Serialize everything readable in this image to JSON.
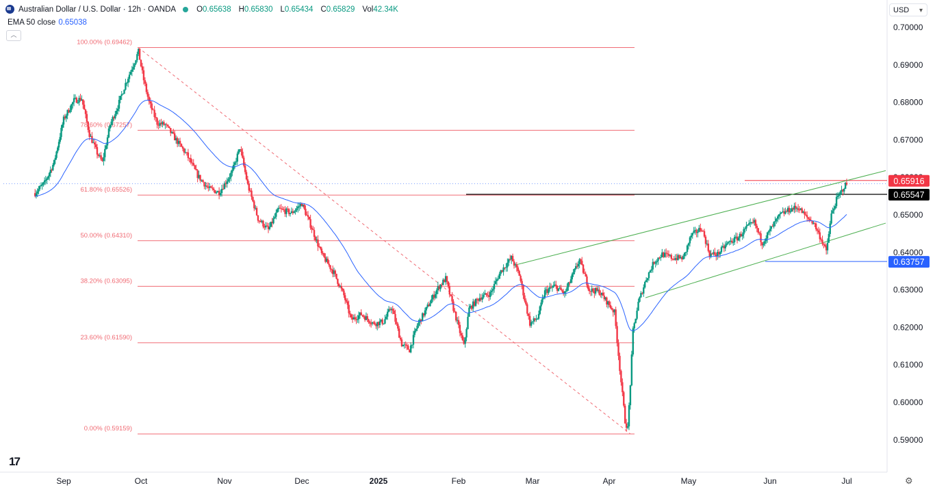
{
  "header": {
    "symbol_title": "Australian Dollar / U.S. Dollar · 12h · OANDA",
    "o_label": "O",
    "o_value": "0.65638",
    "h_label": "H",
    "h_value": "0.65830",
    "l_label": "L",
    "l_value": "0.65434",
    "c_label": "C",
    "c_value": "0.65829",
    "vol_label": "Vol",
    "vol_value": "42.34K",
    "ema_label": "EMA 50 close",
    "ema_value": "0.65038"
  },
  "currency_select": "USD",
  "colors": {
    "up": "#089981",
    "down": "#f23645",
    "ema": "#2962ff",
    "fib": "#f06a73",
    "channel": "#4caf50",
    "support": "#2962ff",
    "resistance_label_bg": "#f23645"
  },
  "chart_data": {
    "type": "candlestick",
    "ylim": [
      0.5885,
      0.701
    ],
    "y_ticks": [
      "0.70000",
      "0.69000",
      "0.68000",
      "0.67000",
      "0.66000",
      "0.65000",
      "0.64000",
      "0.63000",
      "0.62000",
      "0.61000",
      "0.60000",
      "0.59000"
    ],
    "x_ticks": [
      "Sep",
      "Oct",
      "Nov",
      "Dec",
      "2025",
      "Feb",
      "Mar",
      "Apr",
      "May",
      "Jun",
      "Jul"
    ],
    "fib_levels": [
      {
        "label": "100.00% (0.69462)",
        "value": 0.69462
      },
      {
        "label": "78.60% (0.67257)",
        "value": 0.67257
      },
      {
        "label": "61.80% (0.65526)",
        "value": 0.65526
      },
      {
        "label": "50.00% (0.64310)",
        "value": 0.6431
      },
      {
        "label": "38.20% (0.63095)",
        "value": 0.63095
      },
      {
        "label": "23.60% (0.61590)",
        "value": 0.6159
      },
      {
        "label": "0.00% (0.59159)",
        "value": 0.59159
      }
    ],
    "price_labels": [
      {
        "label": "0.65916",
        "value": 0.65916,
        "kind": "resistance"
      },
      {
        "label": "0.65547",
        "value": 0.65547,
        "kind": "current"
      },
      {
        "label": "0.63757",
        "value": 0.63757,
        "kind": "support"
      }
    ],
    "ema_value": 0.65038,
    "price_path": [
      [
        "Aug 20",
        0.6558
      ],
      [
        "Aug 24",
        0.6585
      ],
      [
        "Aug 28",
        0.664
      ],
      [
        "Sep 1",
        0.6755
      ],
      [
        "Sep 5",
        0.6805
      ],
      [
        "Sep 8",
        0.681
      ],
      [
        "Sep 11",
        0.6715
      ],
      [
        "Sep 14",
        0.6665
      ],
      [
        "Sep 16",
        0.664
      ],
      [
        "Sep 19",
        0.674
      ],
      [
        "Sep 22",
        0.679
      ],
      [
        "Sep 25",
        0.685
      ],
      [
        "Sep 28",
        0.69
      ],
      [
        "Sep 30",
        0.6935
      ],
      [
        "Oct 2",
        0.686
      ],
      [
        "Oct 4",
        0.68
      ],
      [
        "Oct 7",
        0.6745
      ],
      [
        "Oct 10",
        0.674
      ],
      [
        "Oct 14",
        0.67
      ],
      [
        "Oct 18",
        0.666
      ],
      [
        "Oct 22",
        0.6605
      ],
      [
        "Oct 26",
        0.657
      ],
      [
        "Oct 30",
        0.656
      ],
      [
        "Nov 4",
        0.6615
      ],
      [
        "Nov 7",
        0.668
      ],
      [
        "Nov 10",
        0.658
      ],
      [
        "Nov 14",
        0.649
      ],
      [
        "Nov 18",
        0.646
      ],
      [
        "Nov 22",
        0.6515
      ],
      [
        "Nov 27",
        0.6505
      ],
      [
        "Dec 1",
        0.653
      ],
      [
        "Dec 5",
        0.6465
      ],
      [
        "Dec 9",
        0.6395
      ],
      [
        "Dec 14",
        0.6345
      ],
      [
        "Dec 18",
        0.6285
      ],
      [
        "Dec 21",
        0.622
      ],
      [
        "Dec 25",
        0.6235
      ],
      [
        "Dec 30",
        0.621
      ],
      [
        "Jan 3",
        0.6215
      ],
      [
        "Jan 6",
        0.6255
      ],
      [
        "Jan 10",
        0.6155
      ],
      [
        "Jan 13",
        0.614
      ],
      [
        "Jan 16",
        0.6205
      ],
      [
        "Jan 20",
        0.6255
      ],
      [
        "Jan 24",
        0.6305
      ],
      [
        "Jan 27",
        0.633
      ],
      [
        "Jan 30",
        0.625
      ],
      [
        "Feb 3",
        0.615
      ],
      [
        "Feb 5",
        0.625
      ],
      [
        "Feb 9",
        0.628
      ],
      [
        "Feb 13",
        0.629
      ],
      [
        "Feb 17",
        0.635
      ],
      [
        "Feb 21",
        0.6385
      ],
      [
        "Feb 24",
        0.634
      ],
      [
        "Feb 28",
        0.621
      ],
      [
        "Mar 3",
        0.6225
      ],
      [
        "Mar 6",
        0.6295
      ],
      [
        "Mar 10",
        0.631
      ],
      [
        "Mar 14",
        0.629
      ],
      [
        "Mar 18",
        0.635
      ],
      [
        "Mar 20",
        0.638
      ],
      [
        "Mar 24",
        0.63
      ],
      [
        "Mar 28",
        0.6295
      ],
      [
        "Apr 1",
        0.626
      ],
      [
        "Apr 3",
        0.624
      ],
      [
        "Apr 5",
        0.609
      ],
      [
        "Apr 7",
        0.595
      ],
      [
        "Apr 8",
        0.593
      ],
      [
        "Apr 9",
        0.605
      ],
      [
        "Apr 10",
        0.619
      ],
      [
        "Apr 12",
        0.6265
      ],
      [
        "Apr 15",
        0.633
      ],
      [
        "Apr 18",
        0.6375
      ],
      [
        "Apr 21",
        0.6395
      ],
      [
        "Apr 25",
        0.6385
      ],
      [
        "Apr 29",
        0.6385
      ],
      [
        "May 2",
        0.6445
      ],
      [
        "May 6",
        0.6465
      ],
      [
        "May 9",
        0.6395
      ],
      [
        "May 12",
        0.6395
      ],
      [
        "May 16",
        0.6425
      ],
      [
        "May 20",
        0.644
      ],
      [
        "May 23",
        0.6465
      ],
      [
        "May 26",
        0.648
      ],
      [
        "May 29",
        0.6425
      ],
      [
        "Jun 2",
        0.647
      ],
      [
        "Jun 5",
        0.65
      ],
      [
        "Jun 9",
        0.6515
      ],
      [
        "Jun 12",
        0.652
      ],
      [
        "Jun 15",
        0.6495
      ],
      [
        "Jun 18",
        0.648
      ],
      [
        "Jun 22",
        0.642
      ],
      [
        "Jun 23",
        0.64
      ],
      [
        "Jun 25",
        0.65
      ],
      [
        "Jun 27",
        0.654
      ],
      [
        "Jun 30",
        0.6575
      ],
      [
        "Jul 1",
        0.6583
      ]
    ]
  }
}
